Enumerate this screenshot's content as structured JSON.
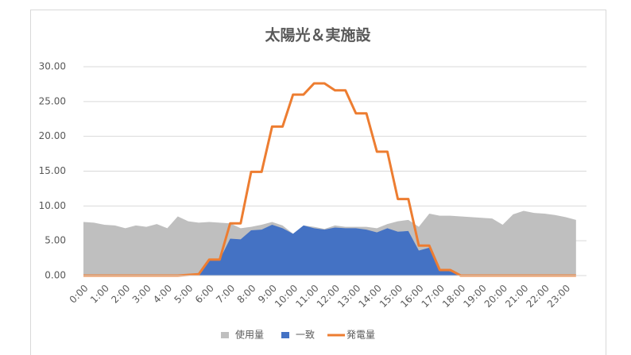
{
  "chart_data": {
    "type": "area",
    "title": "太陽光＆実施設",
    "categories": [
      "0:00",
      null,
      "1:00",
      null,
      "2:00",
      null,
      "3:00",
      null,
      "4:00",
      null,
      "5:00",
      null,
      "6:00",
      null,
      "7:00",
      null,
      "8:00",
      null,
      "9:00",
      null,
      "10:00",
      null,
      "11:00",
      null,
      "12:00",
      null,
      "13:00",
      null,
      "14:00",
      null,
      "15:00",
      null,
      "16:00",
      null,
      "17:00",
      null,
      "18:00",
      null,
      "19:00",
      null,
      "20:00",
      null,
      "21:00",
      null,
      "22:00",
      null,
      "23:00",
      null
    ],
    "ylim": [
      0,
      30
    ],
    "yticks": [
      {
        "value": 0,
        "label": "0.00"
      },
      {
        "value": 5,
        "label": "5.00"
      },
      {
        "value": 10,
        "label": "10.00"
      },
      {
        "value": 15,
        "label": "15.00"
      },
      {
        "value": 20,
        "label": "20.00"
      },
      {
        "value": 25,
        "label": "25.00"
      },
      {
        "value": 30,
        "label": "30.00"
      }
    ],
    "grid": true,
    "legend": "bottom",
    "series": [
      {
        "name": "使用量",
        "type": "area",
        "color": "#bfbfbf",
        "values": [
          7.7,
          7.6,
          7.3,
          7.2,
          6.8,
          7.2,
          7.0,
          7.4,
          6.8,
          8.5,
          7.8,
          7.6,
          7.7,
          7.6,
          7.5,
          6.8,
          7.0,
          7.3,
          7.7,
          7.2,
          6.0,
          7.2,
          7.0,
          6.7,
          7.2,
          7.0,
          7.0,
          7.0,
          6.8,
          7.4,
          7.8,
          8.0,
          7.0,
          8.9,
          8.6,
          8.6,
          8.5,
          8.4,
          8.3,
          8.2,
          7.3,
          8.8,
          9.3,
          9.0,
          8.9,
          8.7,
          8.4,
          8.0
        ]
      },
      {
        "name": "一致",
        "type": "area",
        "color": "#4472c4",
        "values": [
          0,
          0,
          0,
          0,
          0,
          0,
          0,
          0,
          0,
          0,
          0.1,
          0.2,
          2.3,
          2.3,
          5.3,
          5.2,
          6.5,
          6.6,
          7.3,
          6.8,
          6.0,
          7.2,
          6.8,
          6.6,
          6.9,
          6.8,
          6.8,
          6.6,
          6.2,
          6.8,
          6.3,
          6.4,
          3.6,
          4.0,
          0.8,
          0.6,
          0,
          0,
          0,
          0,
          0,
          0,
          0,
          0,
          0,
          0,
          0,
          0
        ]
      },
      {
        "name": "発電量",
        "type": "line",
        "color": "#ed7d31",
        "values": [
          0,
          0,
          0,
          0,
          0,
          0,
          0,
          0,
          0,
          0,
          0.1,
          0.2,
          2.3,
          2.3,
          7.5,
          7.5,
          14.9,
          14.9,
          21.4,
          21.4,
          26.0,
          26.0,
          27.6,
          27.6,
          26.6,
          26.6,
          23.3,
          23.3,
          17.8,
          17.8,
          11.0,
          11.0,
          4.3,
          4.3,
          0.8,
          0.8,
          0,
          0,
          0,
          0,
          0,
          0,
          0,
          0,
          0,
          0,
          0,
          0
        ]
      }
    ]
  }
}
